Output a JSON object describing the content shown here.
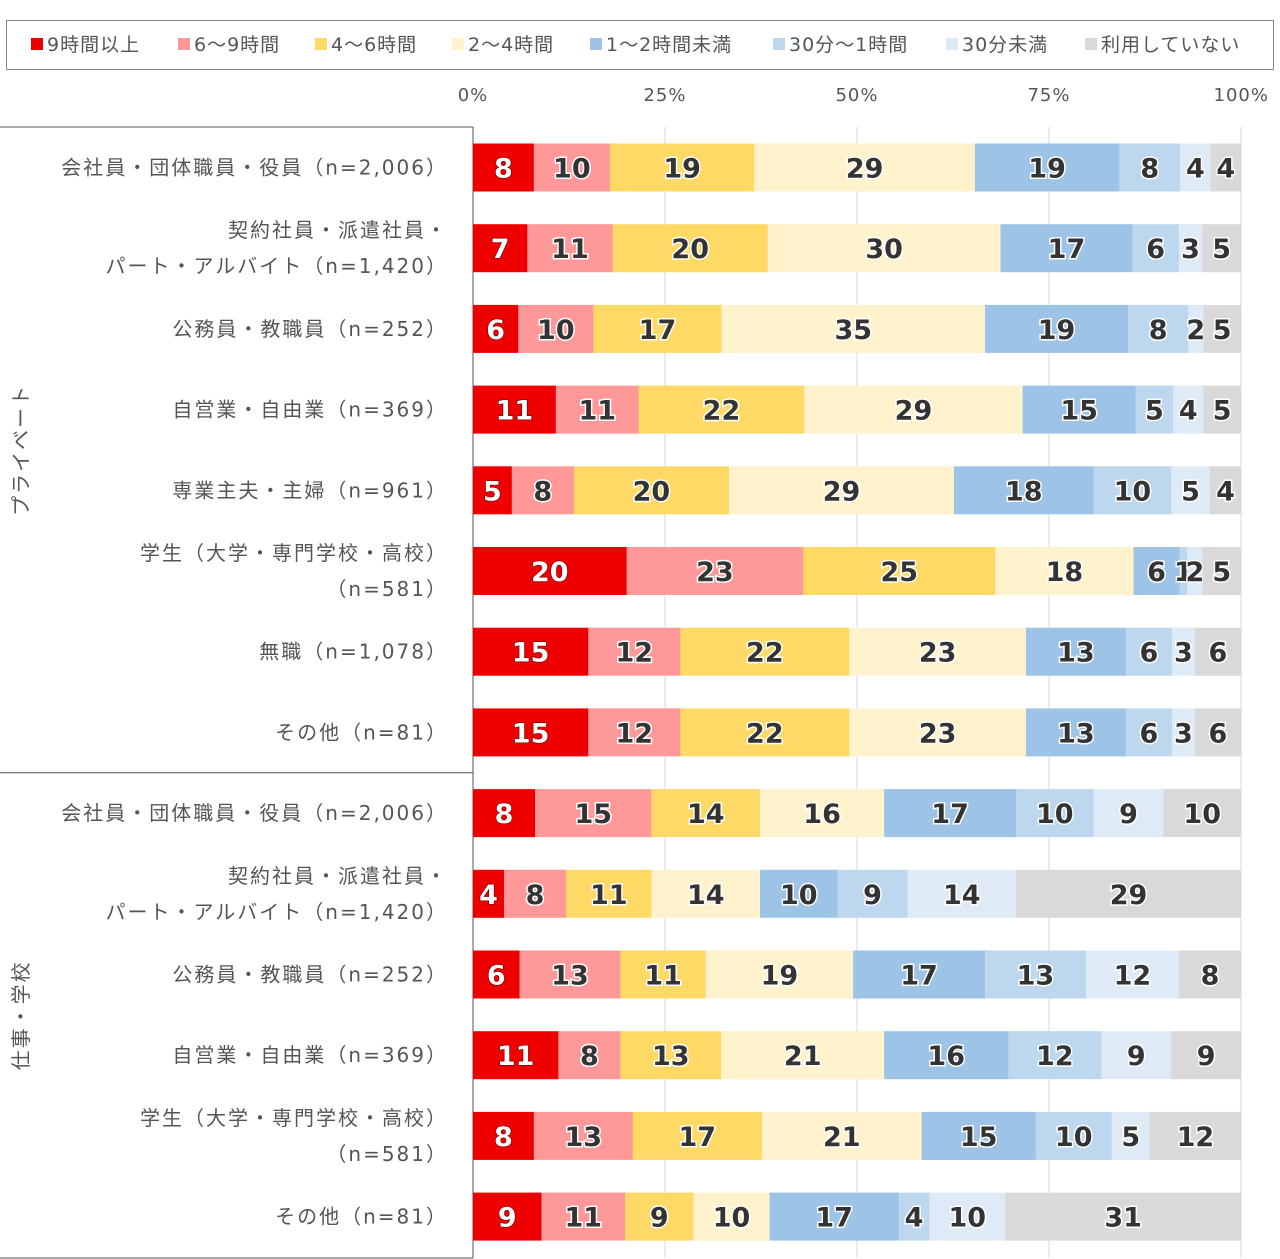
{
  "chart_data": {
    "type": "bar",
    "orientation": "horizontal",
    "stacked": "percent",
    "legend_position": "top",
    "grid": true,
    "xlim": [
      0,
      100
    ],
    "x_ticks": [
      "0%",
      "25%",
      "50%",
      "75%",
      "100%"
    ],
    "series": [
      {
        "name": "9時間以上",
        "color": "#ee0000"
      },
      {
        "name": "6～9時間",
        "color": "#ff9999"
      },
      {
        "name": "4～6時間",
        "color": "#ffd966"
      },
      {
        "name": "2～4時間",
        "color": "#fff2cc"
      },
      {
        "name": "1～2時間未満",
        "color": "#9dc3e6"
      },
      {
        "name": "30分～1時間",
        "color": "#bdd7ee"
      },
      {
        "name": "30分未満",
        "color": "#deebf7"
      },
      {
        "name": "利用していない",
        "color": "#d9d9d9"
      }
    ],
    "groups": [
      {
        "name": "プライベート",
        "rows": [
          {
            "label": [
              "会社員・団体職員・役員（n=2,006）"
            ],
            "values": [
              8,
              10,
              19,
              29,
              19,
              8,
              4,
              4
            ]
          },
          {
            "label": [
              "契約社員・派遣社員・",
              "パート・アルバイト（n=1,420）"
            ],
            "values": [
              7,
              11,
              20,
              30,
              17,
              6,
              3,
              5
            ]
          },
          {
            "label": [
              "公務員・教職員（n=252）"
            ],
            "values": [
              6,
              10,
              17,
              35,
              19,
              8,
              2,
              5
            ]
          },
          {
            "label": [
              "自営業・自由業（n=369）"
            ],
            "values": [
              11,
              11,
              22,
              29,
              15,
              5,
              4,
              5
            ]
          },
          {
            "label": [
              "専業主夫・主婦（n=961）"
            ],
            "values": [
              5,
              8,
              20,
              29,
              18,
              10,
              5,
              4
            ]
          },
          {
            "label": [
              "学生（大学・専門学校・高校）",
              "（n=581）"
            ],
            "values": [
              20,
              23,
              25,
              18,
              6,
              1,
              2,
              5
            ]
          },
          {
            "label": [
              "無職（n=1,078）"
            ],
            "values": [
              15,
              12,
              22,
              23,
              13,
              6,
              3,
              6
            ]
          },
          {
            "label": [
              "その他（n=81）"
            ],
            "values": [
              15,
              12,
              22,
              23,
              13,
              6,
              3,
              6
            ]
          }
        ]
      },
      {
        "name": "仕事・学校",
        "rows": [
          {
            "label": [
              "会社員・団体職員・役員（n=2,006）"
            ],
            "values": [
              8,
              15,
              14,
              16,
              17,
              10,
              9,
              10
            ]
          },
          {
            "label": [
              "契約社員・派遣社員・",
              "パート・アルバイト（n=1,420）"
            ],
            "values": [
              4,
              8,
              11,
              14,
              10,
              9,
              14,
              29
            ]
          },
          {
            "label": [
              "公務員・教職員（n=252）"
            ],
            "values": [
              6,
              13,
              11,
              19,
              17,
              13,
              12,
              8
            ]
          },
          {
            "label": [
              "自営業・自由業（n=369）"
            ],
            "values": [
              11,
              8,
              13,
              21,
              16,
              12,
              9,
              9
            ]
          },
          {
            "label": [
              "学生（大学・専門学校・高校）",
              "（n=581）"
            ],
            "values": [
              8,
              13,
              17,
              21,
              15,
              10,
              5,
              12
            ]
          },
          {
            "label": [
              "その他（n=81）"
            ],
            "values": [
              9,
              11,
              9,
              10,
              17,
              4,
              10,
              31
            ]
          }
        ]
      }
    ]
  }
}
